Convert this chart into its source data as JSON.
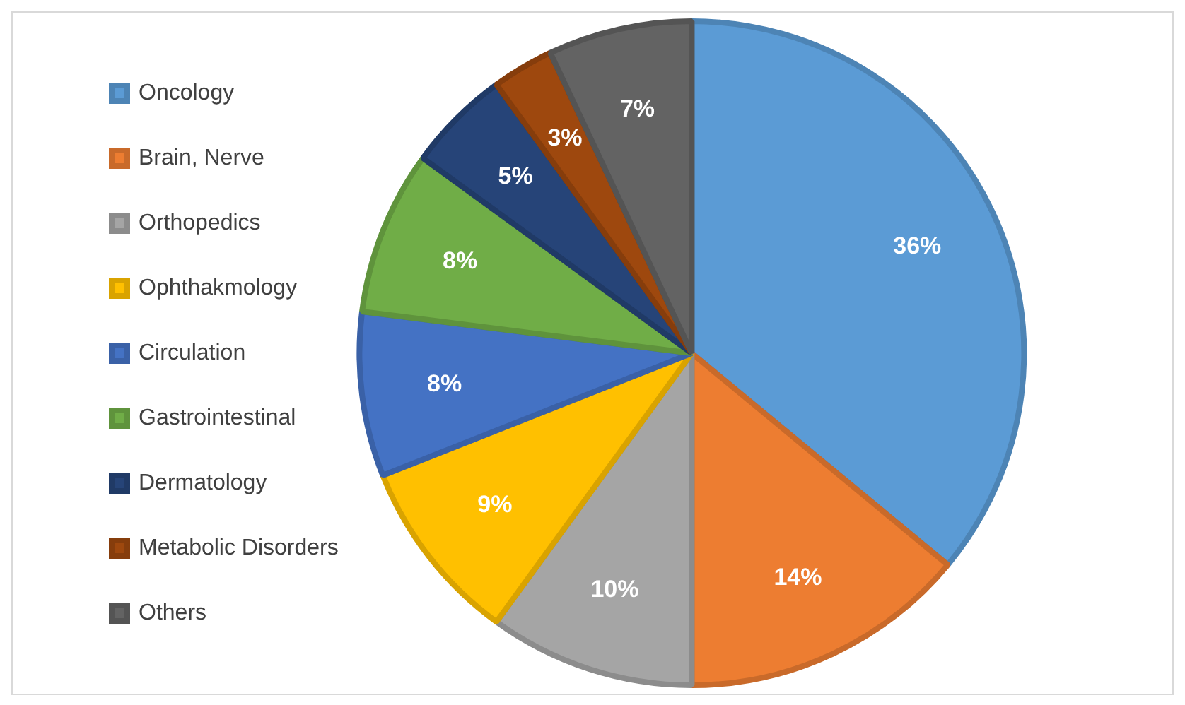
{
  "chart_data": {
    "type": "pie",
    "categories": [
      "Oncology",
      "Brain, Nerve",
      "Orthopedics",
      "Ophthakmology",
      "Circulation",
      "Gastrointestinal",
      "Dermatology",
      "Metabolic Disorders",
      "Others"
    ],
    "values": [
      36,
      14,
      10,
      9,
      8,
      8,
      5,
      3,
      7
    ],
    "value_labels": [
      "36%",
      "14%",
      "10%",
      "9%",
      "8%",
      "8%",
      "5%",
      "3%",
      "7%"
    ],
    "colors": [
      "#5b9bd5",
      "#ed7d31",
      "#a5a5a5",
      "#ffc000",
      "#4472c4",
      "#70ad47",
      "#264478",
      "#9e480e",
      "#636363"
    ],
    "legend": "left"
  }
}
